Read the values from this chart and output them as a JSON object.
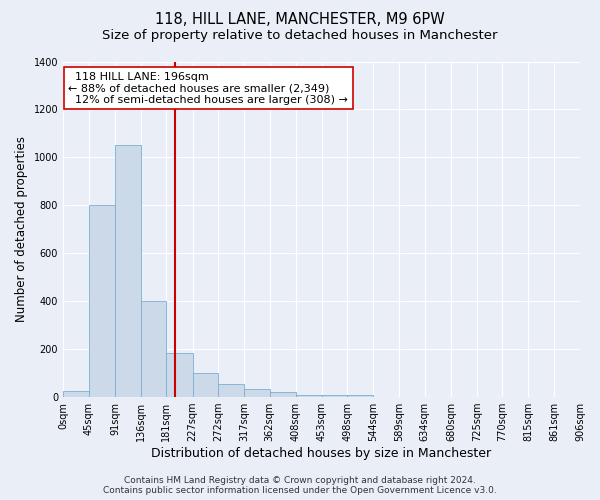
{
  "title": "118, HILL LANE, MANCHESTER, M9 6PW",
  "subtitle": "Size of property relative to detached houses in Manchester",
  "xlabel": "Distribution of detached houses by size in Manchester",
  "ylabel": "Number of detached properties",
  "bar_color": "#ccd9e8",
  "bar_edge_color": "#7aafd4",
  "bar_heights": [
    25,
    800,
    1050,
    400,
    185,
    100,
    55,
    35,
    20,
    10,
    10,
    10,
    0,
    0,
    0,
    0,
    0,
    0,
    0,
    0
  ],
  "bin_edges": [
    0,
    45,
    91,
    136,
    181,
    227,
    272,
    317,
    362,
    408,
    453,
    498,
    544,
    589,
    634,
    680,
    725,
    770,
    815,
    861,
    906
  ],
  "tick_labels": [
    "0sqm",
    "45sqm",
    "91sqm",
    "136sqm",
    "181sqm",
    "227sqm",
    "272sqm",
    "317sqm",
    "362sqm",
    "408sqm",
    "453sqm",
    "498sqm",
    "544sqm",
    "589sqm",
    "634sqm",
    "680sqm",
    "725sqm",
    "770sqm",
    "815sqm",
    "861sqm",
    "906sqm"
  ],
  "property_size": 196,
  "red_line_color": "#cc0000",
  "annotation_text": "  118 HILL LANE: 196sqm\n← 88% of detached houses are smaller (2,349)\n  12% of semi-detached houses are larger (308) →",
  "annotation_box_color": "#ffffff",
  "annotation_box_edge_color": "#cc0000",
  "ylim": [
    0,
    1400
  ],
  "yticks": [
    0,
    200,
    400,
    600,
    800,
    1000,
    1200,
    1400
  ],
  "bg_color": "#eaeff7",
  "grid_color": "#ffffff",
  "footer_text": "Contains HM Land Registry data © Crown copyright and database right 2024.\nContains public sector information licensed under the Open Government Licence v3.0.",
  "title_fontsize": 10.5,
  "subtitle_fontsize": 9.5,
  "ylabel_fontsize": 8.5,
  "xlabel_fontsize": 9,
  "tick_fontsize": 7,
  "annotation_fontsize": 8,
  "footer_fontsize": 6.5
}
